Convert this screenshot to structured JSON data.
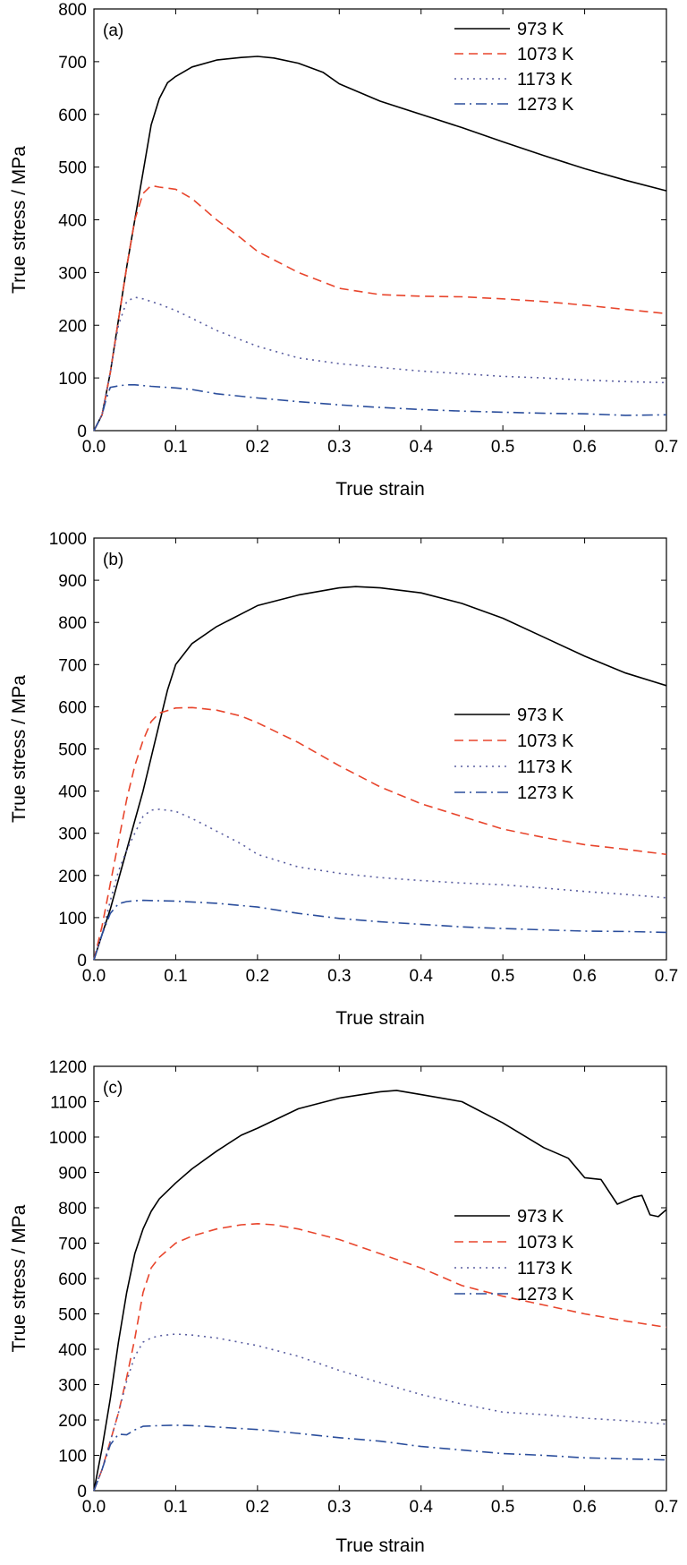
{
  "chart_data": [
    {
      "type": "line",
      "panel_label": "(a)",
      "xlabel": "True strain",
      "ylabel": "True stress / MPa",
      "xlim": [
        0,
        0.7
      ],
      "ylim": [
        0,
        800
      ],
      "xticks": [
        "0.0",
        "0.1",
        "0.2",
        "0.3",
        "0.4",
        "0.5",
        "0.6",
        "0.7"
      ],
      "yticks": [
        "0",
        "100",
        "200",
        "300",
        "400",
        "500",
        "600",
        "700",
        "800"
      ],
      "legend_position": "top-right",
      "series": [
        {
          "name": "973 K",
          "color": "#000000",
          "dash": "solid",
          "x": [
            0,
            0.01,
            0.02,
            0.03,
            0.04,
            0.05,
            0.06,
            0.07,
            0.08,
            0.09,
            0.1,
            0.12,
            0.15,
            0.18,
            0.2,
            0.22,
            0.25,
            0.28,
            0.3,
            0.35,
            0.4,
            0.45,
            0.5,
            0.55,
            0.6,
            0.65,
            0.7
          ],
          "y": [
            0,
            30,
            110,
            210,
            310,
            400,
            490,
            580,
            630,
            660,
            672,
            690,
            703,
            708,
            710,
            707,
            697,
            680,
            658,
            625,
            600,
            575,
            548,
            522,
            497,
            475,
            455
          ]
        },
        {
          "name": "1073 K",
          "color": "#e8452c",
          "dash": "dashed",
          "x": [
            0,
            0.01,
            0.02,
            0.03,
            0.04,
            0.05,
            0.06,
            0.07,
            0.08,
            0.1,
            0.12,
            0.15,
            0.18,
            0.2,
            0.25,
            0.3,
            0.35,
            0.4,
            0.45,
            0.5,
            0.55,
            0.6,
            0.65,
            0.7
          ],
          "y": [
            0,
            30,
            110,
            210,
            310,
            400,
            450,
            465,
            462,
            458,
            440,
            400,
            365,
            340,
            300,
            270,
            258,
            255,
            254,
            250,
            245,
            238,
            230,
            222
          ]
        },
        {
          "name": "1173 K",
          "color": "#5a5ea0",
          "dash": "dotted",
          "x": [
            0,
            0.01,
            0.02,
            0.03,
            0.04,
            0.05,
            0.06,
            0.08,
            0.1,
            0.12,
            0.15,
            0.2,
            0.25,
            0.3,
            0.35,
            0.4,
            0.45,
            0.5,
            0.55,
            0.6,
            0.65,
            0.7
          ],
          "y": [
            0,
            30,
            110,
            200,
            245,
            253,
            250,
            240,
            228,
            213,
            190,
            160,
            138,
            127,
            120,
            113,
            108,
            103,
            100,
            96,
            93,
            91
          ]
        },
        {
          "name": "1273 K",
          "color": "#2b4e9c",
          "dash": "dashdot",
          "x": [
            0,
            0.01,
            0.015,
            0.02,
            0.03,
            0.04,
            0.05,
            0.07,
            0.1,
            0.12,
            0.15,
            0.2,
            0.25,
            0.3,
            0.35,
            0.4,
            0.45,
            0.5,
            0.55,
            0.6,
            0.65,
            0.7
          ],
          "y": [
            0,
            30,
            60,
            82,
            85,
            87,
            87,
            84,
            81,
            78,
            70,
            62,
            55,
            49,
            44,
            40,
            37,
            35,
            33,
            32,
            29,
            30
          ]
        }
      ]
    },
    {
      "type": "line",
      "panel_label": "(b)",
      "xlabel": "True strain",
      "ylabel": "True stress / MPa",
      "xlim": [
        0,
        0.7
      ],
      "ylim": [
        0,
        1000
      ],
      "xticks": [
        "0.0",
        "0.1",
        "0.2",
        "0.3",
        "0.4",
        "0.5",
        "0.6",
        "0.7"
      ],
      "yticks": [
        "0",
        "100",
        "200",
        "300",
        "400",
        "500",
        "600",
        "700",
        "800",
        "900",
        "1000"
      ],
      "legend_position": "middle-right",
      "series": [
        {
          "name": "973 K",
          "color": "#000000",
          "dash": "solid",
          "x": [
            0,
            0.01,
            0.02,
            0.03,
            0.04,
            0.05,
            0.06,
            0.07,
            0.08,
            0.09,
            0.1,
            0.12,
            0.15,
            0.18,
            0.2,
            0.25,
            0.3,
            0.32,
            0.35,
            0.4,
            0.45,
            0.5,
            0.55,
            0.6,
            0.65,
            0.7
          ],
          "y": [
            0,
            60,
            120,
            190,
            260,
            330,
            400,
            480,
            560,
            640,
            700,
            750,
            790,
            820,
            840,
            865,
            882,
            885,
            882,
            870,
            845,
            810,
            765,
            720,
            680,
            650
          ]
        },
        {
          "name": "1073 K",
          "color": "#e8452c",
          "dash": "dashed",
          "x": [
            0,
            0.01,
            0.02,
            0.03,
            0.04,
            0.05,
            0.06,
            0.07,
            0.08,
            0.1,
            0.12,
            0.15,
            0.18,
            0.2,
            0.25,
            0.3,
            0.35,
            0.4,
            0.45,
            0.5,
            0.55,
            0.6,
            0.65,
            0.7
          ],
          "y": [
            0,
            80,
            180,
            280,
            380,
            460,
            520,
            565,
            585,
            597,
            598,
            592,
            578,
            562,
            515,
            460,
            410,
            370,
            340,
            310,
            290,
            273,
            262,
            250
          ]
        },
        {
          "name": "1173 K",
          "color": "#5a5ea0",
          "dash": "dotted",
          "x": [
            0,
            0.01,
            0.02,
            0.03,
            0.04,
            0.05,
            0.06,
            0.07,
            0.08,
            0.1,
            0.12,
            0.15,
            0.18,
            0.2,
            0.25,
            0.3,
            0.35,
            0.4,
            0.45,
            0.5,
            0.55,
            0.6,
            0.65,
            0.7
          ],
          "y": [
            0,
            60,
            140,
            210,
            260,
            300,
            340,
            355,
            357,
            352,
            335,
            305,
            275,
            250,
            220,
            205,
            195,
            188,
            182,
            178,
            170,
            162,
            155,
            147
          ]
        },
        {
          "name": "1273 K",
          "color": "#2b4e9c",
          "dash": "dashdot",
          "x": [
            0,
            0.01,
            0.02,
            0.03,
            0.04,
            0.05,
            0.06,
            0.08,
            0.1,
            0.15,
            0.2,
            0.25,
            0.3,
            0.35,
            0.4,
            0.45,
            0.5,
            0.55,
            0.6,
            0.65,
            0.7
          ],
          "y": [
            0,
            60,
            110,
            133,
            138,
            140,
            141,
            140,
            139,
            134,
            125,
            110,
            98,
            90,
            84,
            78,
            74,
            71,
            68,
            67,
            65
          ]
        }
      ]
    },
    {
      "type": "line",
      "panel_label": "(c)",
      "xlabel": "True strain",
      "ylabel": "True stress / MPa",
      "xlim": [
        0,
        0.7
      ],
      "ylim": [
        0,
        1200
      ],
      "xticks": [
        "0.0",
        "0.1",
        "0.2",
        "0.3",
        "0.4",
        "0.5",
        "0.6",
        "0.7"
      ],
      "yticks": [
        "0",
        "100",
        "200",
        "300",
        "400",
        "500",
        "600",
        "700",
        "800",
        "900",
        "1000",
        "1100",
        "1200"
      ],
      "legend_position": "middle-right",
      "series": [
        {
          "name": "973 K",
          "color": "#000000",
          "dash": "solid",
          "x": [
            0,
            0.01,
            0.02,
            0.03,
            0.04,
            0.05,
            0.06,
            0.07,
            0.08,
            0.1,
            0.12,
            0.15,
            0.18,
            0.2,
            0.25,
            0.3,
            0.35,
            0.37,
            0.4,
            0.45,
            0.5,
            0.55,
            0.58,
            0.6,
            0.62,
            0.64,
            0.66,
            0.67,
            0.68,
            0.69,
            0.7
          ],
          "y": [
            0,
            120,
            260,
            420,
            560,
            670,
            740,
            790,
            825,
            870,
            910,
            960,
            1005,
            1025,
            1080,
            1110,
            1128,
            1132,
            1120,
            1100,
            1040,
            970,
            940,
            885,
            880,
            810,
            830,
            835,
            780,
            775,
            795
          ]
        },
        {
          "name": "1073 K",
          "color": "#e8452c",
          "dash": "dashed",
          "x": [
            0,
            0.01,
            0.02,
            0.03,
            0.04,
            0.05,
            0.06,
            0.07,
            0.08,
            0.1,
            0.12,
            0.15,
            0.18,
            0.2,
            0.22,
            0.25,
            0.3,
            0.35,
            0.4,
            0.45,
            0.5,
            0.55,
            0.6,
            0.65,
            0.7
          ],
          "y": [
            0,
            60,
            140,
            220,
            320,
            430,
            560,
            630,
            660,
            700,
            720,
            740,
            752,
            755,
            752,
            740,
            710,
            670,
            630,
            580,
            550,
            525,
            500,
            480,
            462
          ]
        },
        {
          "name": "1173 K",
          "color": "#5a5ea0",
          "dash": "dotted",
          "x": [
            0,
            0.01,
            0.02,
            0.03,
            0.04,
            0.05,
            0.06,
            0.07,
            0.08,
            0.1,
            0.12,
            0.15,
            0.2,
            0.25,
            0.3,
            0.35,
            0.4,
            0.45,
            0.5,
            0.55,
            0.6,
            0.65,
            0.7
          ],
          "y": [
            0,
            60,
            140,
            220,
            310,
            380,
            420,
            432,
            438,
            443,
            440,
            432,
            410,
            380,
            340,
            305,
            272,
            245,
            222,
            215,
            205,
            198,
            188
          ]
        },
        {
          "name": "1273 K",
          "color": "#2b4e9c",
          "dash": "dashdot",
          "x": [
            0,
            0.01,
            0.02,
            0.03,
            0.04,
            0.05,
            0.06,
            0.08,
            0.1,
            0.12,
            0.15,
            0.2,
            0.25,
            0.3,
            0.35,
            0.4,
            0.45,
            0.5,
            0.55,
            0.6,
            0.65,
            0.7
          ],
          "y": [
            0,
            60,
            130,
            160,
            158,
            172,
            182,
            184,
            185,
            184,
            180,
            173,
            162,
            150,
            140,
            125,
            115,
            105,
            100,
            93,
            90,
            87
          ]
        }
      ]
    }
  ]
}
